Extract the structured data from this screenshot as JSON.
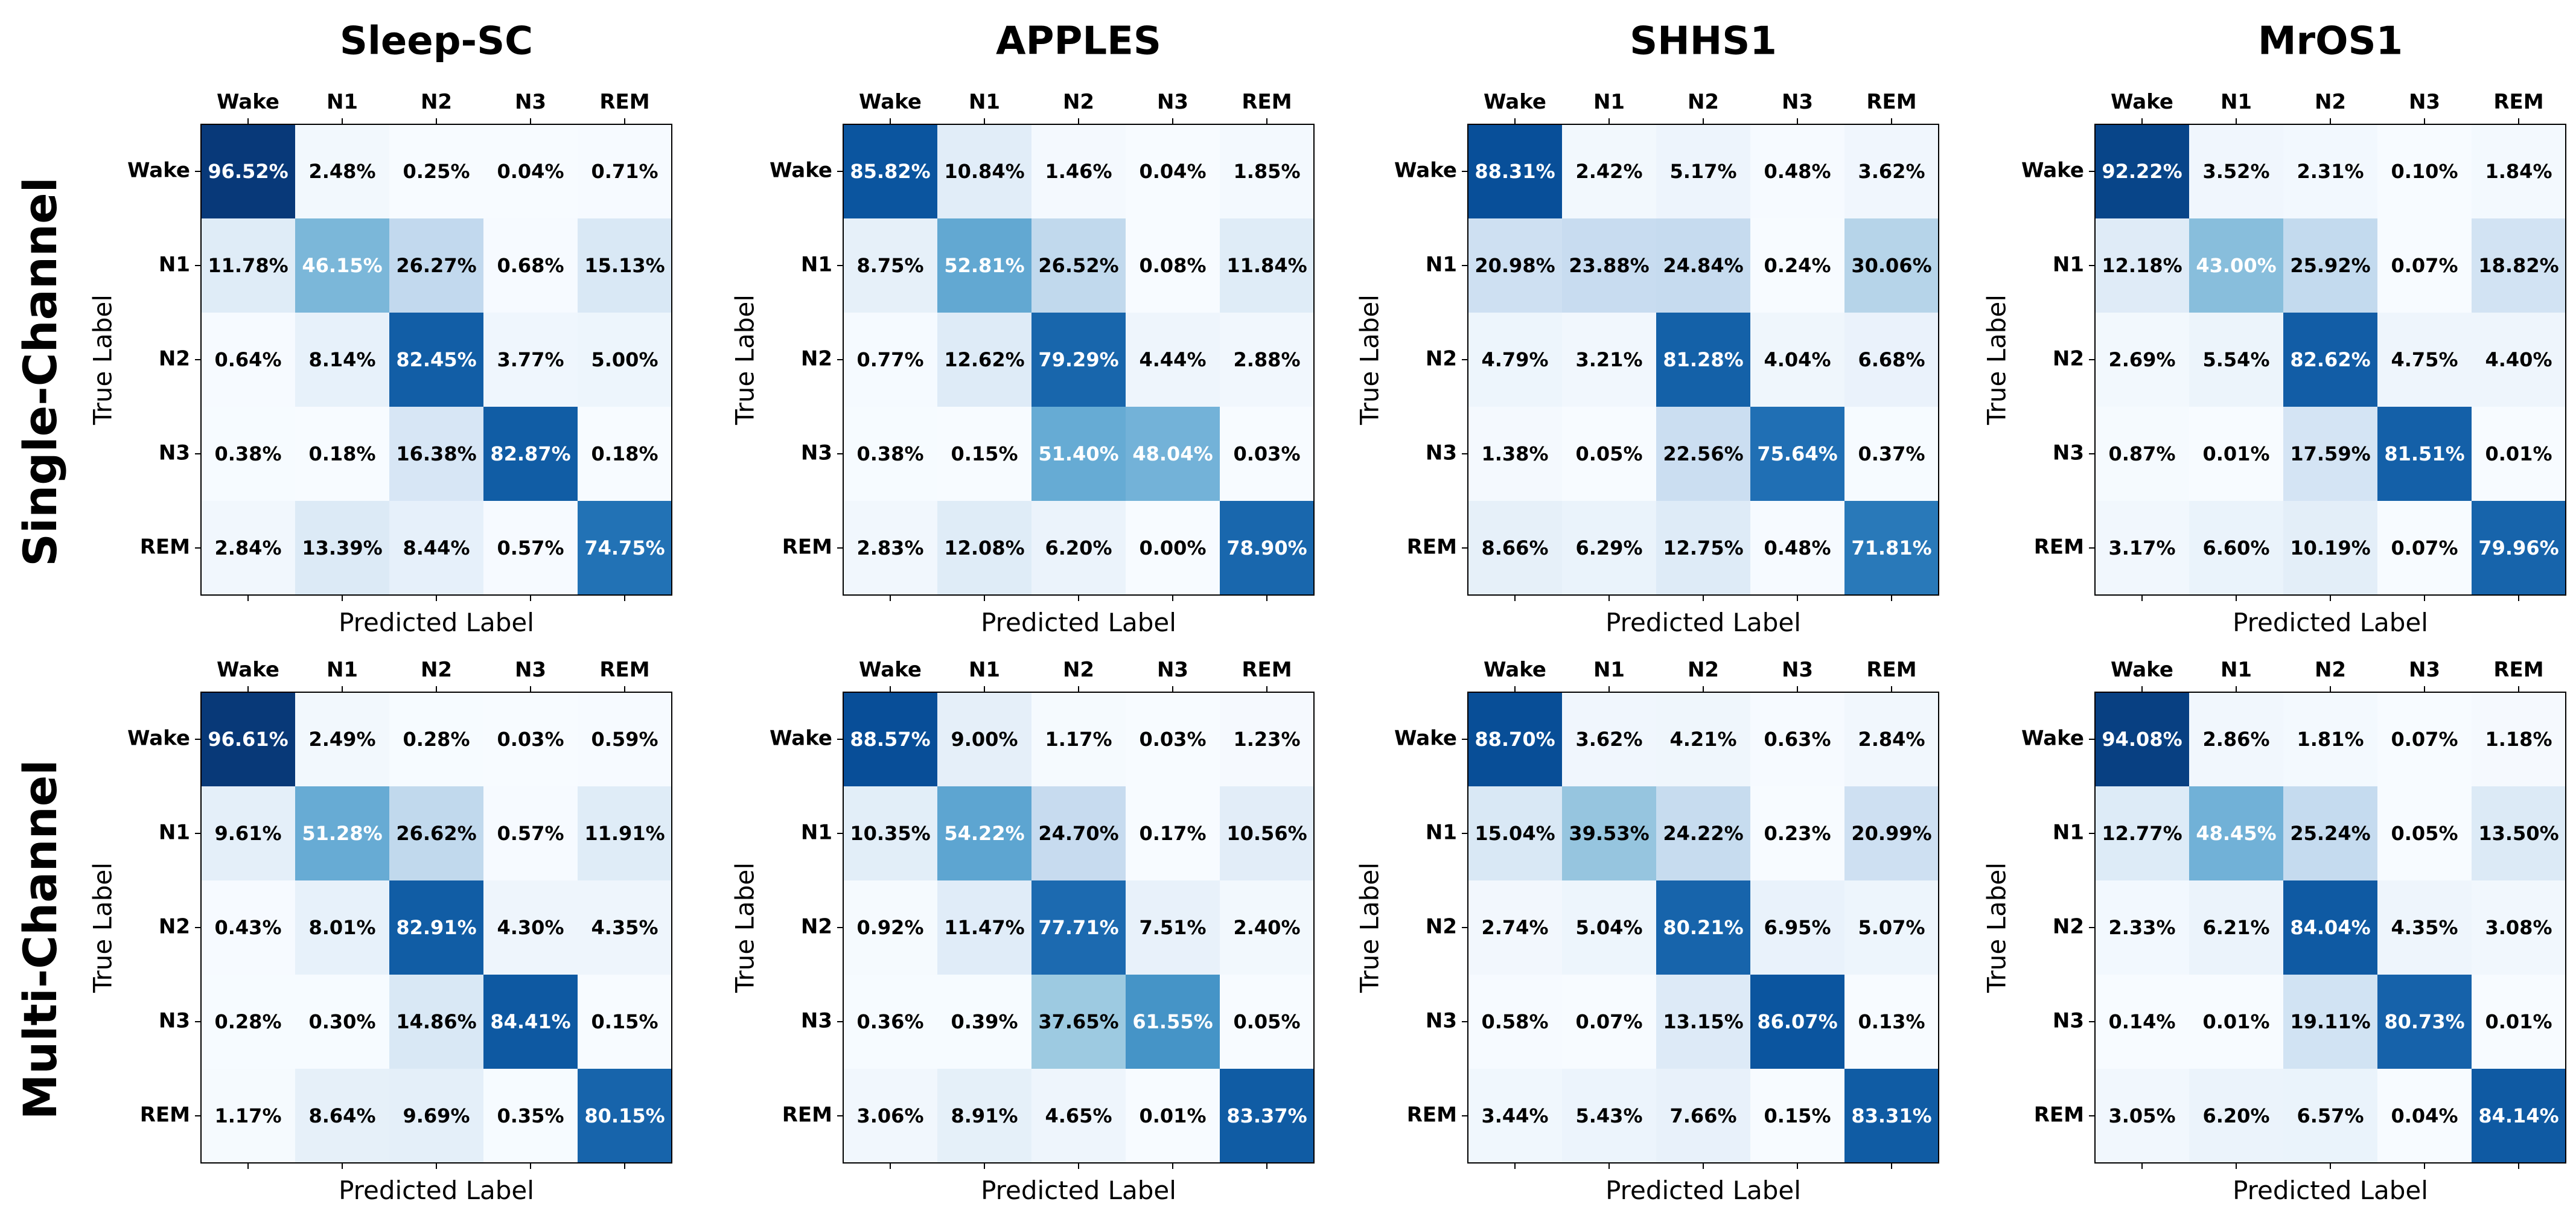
{
  "chart_data": {
    "type": "heatmap",
    "classes": [
      "Wake",
      "N1",
      "N2",
      "N3",
      "REM"
    ],
    "datasets": [
      "Sleep-SC",
      "APPLES",
      "SHHS1",
      "MrOS1"
    ],
    "rows": [
      "Single-Channel",
      "Multi-Channel"
    ],
    "xlabel": "Predicted Label",
    "ylabel": "True Label",
    "value_suffix": "%",
    "colormap": "Blues",
    "vmin": 0,
    "vmax": 100,
    "matrices": [
      [
        [
          [
            96.52,
            2.48,
            0.25,
            0.04,
            0.71
          ],
          [
            11.78,
            46.15,
            26.27,
            0.68,
            15.13
          ],
          [
            0.64,
            8.14,
            82.45,
            3.77,
            5.0
          ],
          [
            0.38,
            0.18,
            16.38,
            82.87,
            0.18
          ],
          [
            2.84,
            13.39,
            8.44,
            0.57,
            74.75
          ]
        ],
        [
          [
            85.82,
            10.84,
            1.46,
            0.04,
            1.85
          ],
          [
            8.75,
            52.81,
            26.52,
            0.08,
            11.84
          ],
          [
            0.77,
            12.62,
            79.29,
            4.44,
            2.88
          ],
          [
            0.38,
            0.15,
            51.4,
            48.04,
            0.03
          ],
          [
            2.83,
            12.08,
            6.2,
            0.0,
            78.9
          ]
        ],
        [
          [
            88.31,
            2.42,
            5.17,
            0.48,
            3.62
          ],
          [
            20.98,
            23.88,
            24.84,
            0.24,
            30.06
          ],
          [
            4.79,
            3.21,
            81.28,
            4.04,
            6.68
          ],
          [
            1.38,
            0.05,
            22.56,
            75.64,
            0.37
          ],
          [
            8.66,
            6.29,
            12.75,
            0.48,
            71.81
          ]
        ],
        [
          [
            92.22,
            3.52,
            2.31,
            0.1,
            1.84
          ],
          [
            12.18,
            43.0,
            25.92,
            0.07,
            18.82
          ],
          [
            2.69,
            5.54,
            82.62,
            4.75,
            4.4
          ],
          [
            0.87,
            0.01,
            17.59,
            81.51,
            0.01
          ],
          [
            3.17,
            6.6,
            10.19,
            0.07,
            79.96
          ]
        ]
      ],
      [
        [
          [
            96.61,
            2.49,
            0.28,
            0.03,
            0.59
          ],
          [
            9.61,
            51.28,
            26.62,
            0.57,
            11.91
          ],
          [
            0.43,
            8.01,
            82.91,
            4.3,
            4.35
          ],
          [
            0.28,
            0.3,
            14.86,
            84.41,
            0.15
          ],
          [
            1.17,
            8.64,
            9.69,
            0.35,
            80.15
          ]
        ],
        [
          [
            88.57,
            9.0,
            1.17,
            0.03,
            1.23
          ],
          [
            10.35,
            54.22,
            24.7,
            0.17,
            10.56
          ],
          [
            0.92,
            11.47,
            77.71,
            7.51,
            2.4
          ],
          [
            0.36,
            0.39,
            37.65,
            61.55,
            0.05
          ],
          [
            3.06,
            8.91,
            4.65,
            0.01,
            83.37
          ]
        ],
        [
          [
            88.7,
            3.62,
            4.21,
            0.63,
            2.84
          ],
          [
            15.04,
            39.53,
            24.22,
            0.23,
            20.99
          ],
          [
            2.74,
            5.04,
            80.21,
            6.95,
            5.07
          ],
          [
            0.58,
            0.07,
            13.15,
            86.07,
            0.13
          ],
          [
            3.44,
            5.43,
            7.66,
            0.15,
            83.31
          ]
        ],
        [
          [
            94.08,
            2.86,
            1.81,
            0.07,
            1.18
          ],
          [
            12.77,
            48.45,
            25.24,
            0.05,
            13.5
          ],
          [
            2.33,
            6.21,
            84.04,
            4.35,
            3.08
          ],
          [
            0.14,
            0.01,
            19.11,
            80.73,
            0.01
          ],
          [
            3.05,
            6.2,
            6.57,
            0.04,
            84.14
          ]
        ]
      ]
    ]
  }
}
